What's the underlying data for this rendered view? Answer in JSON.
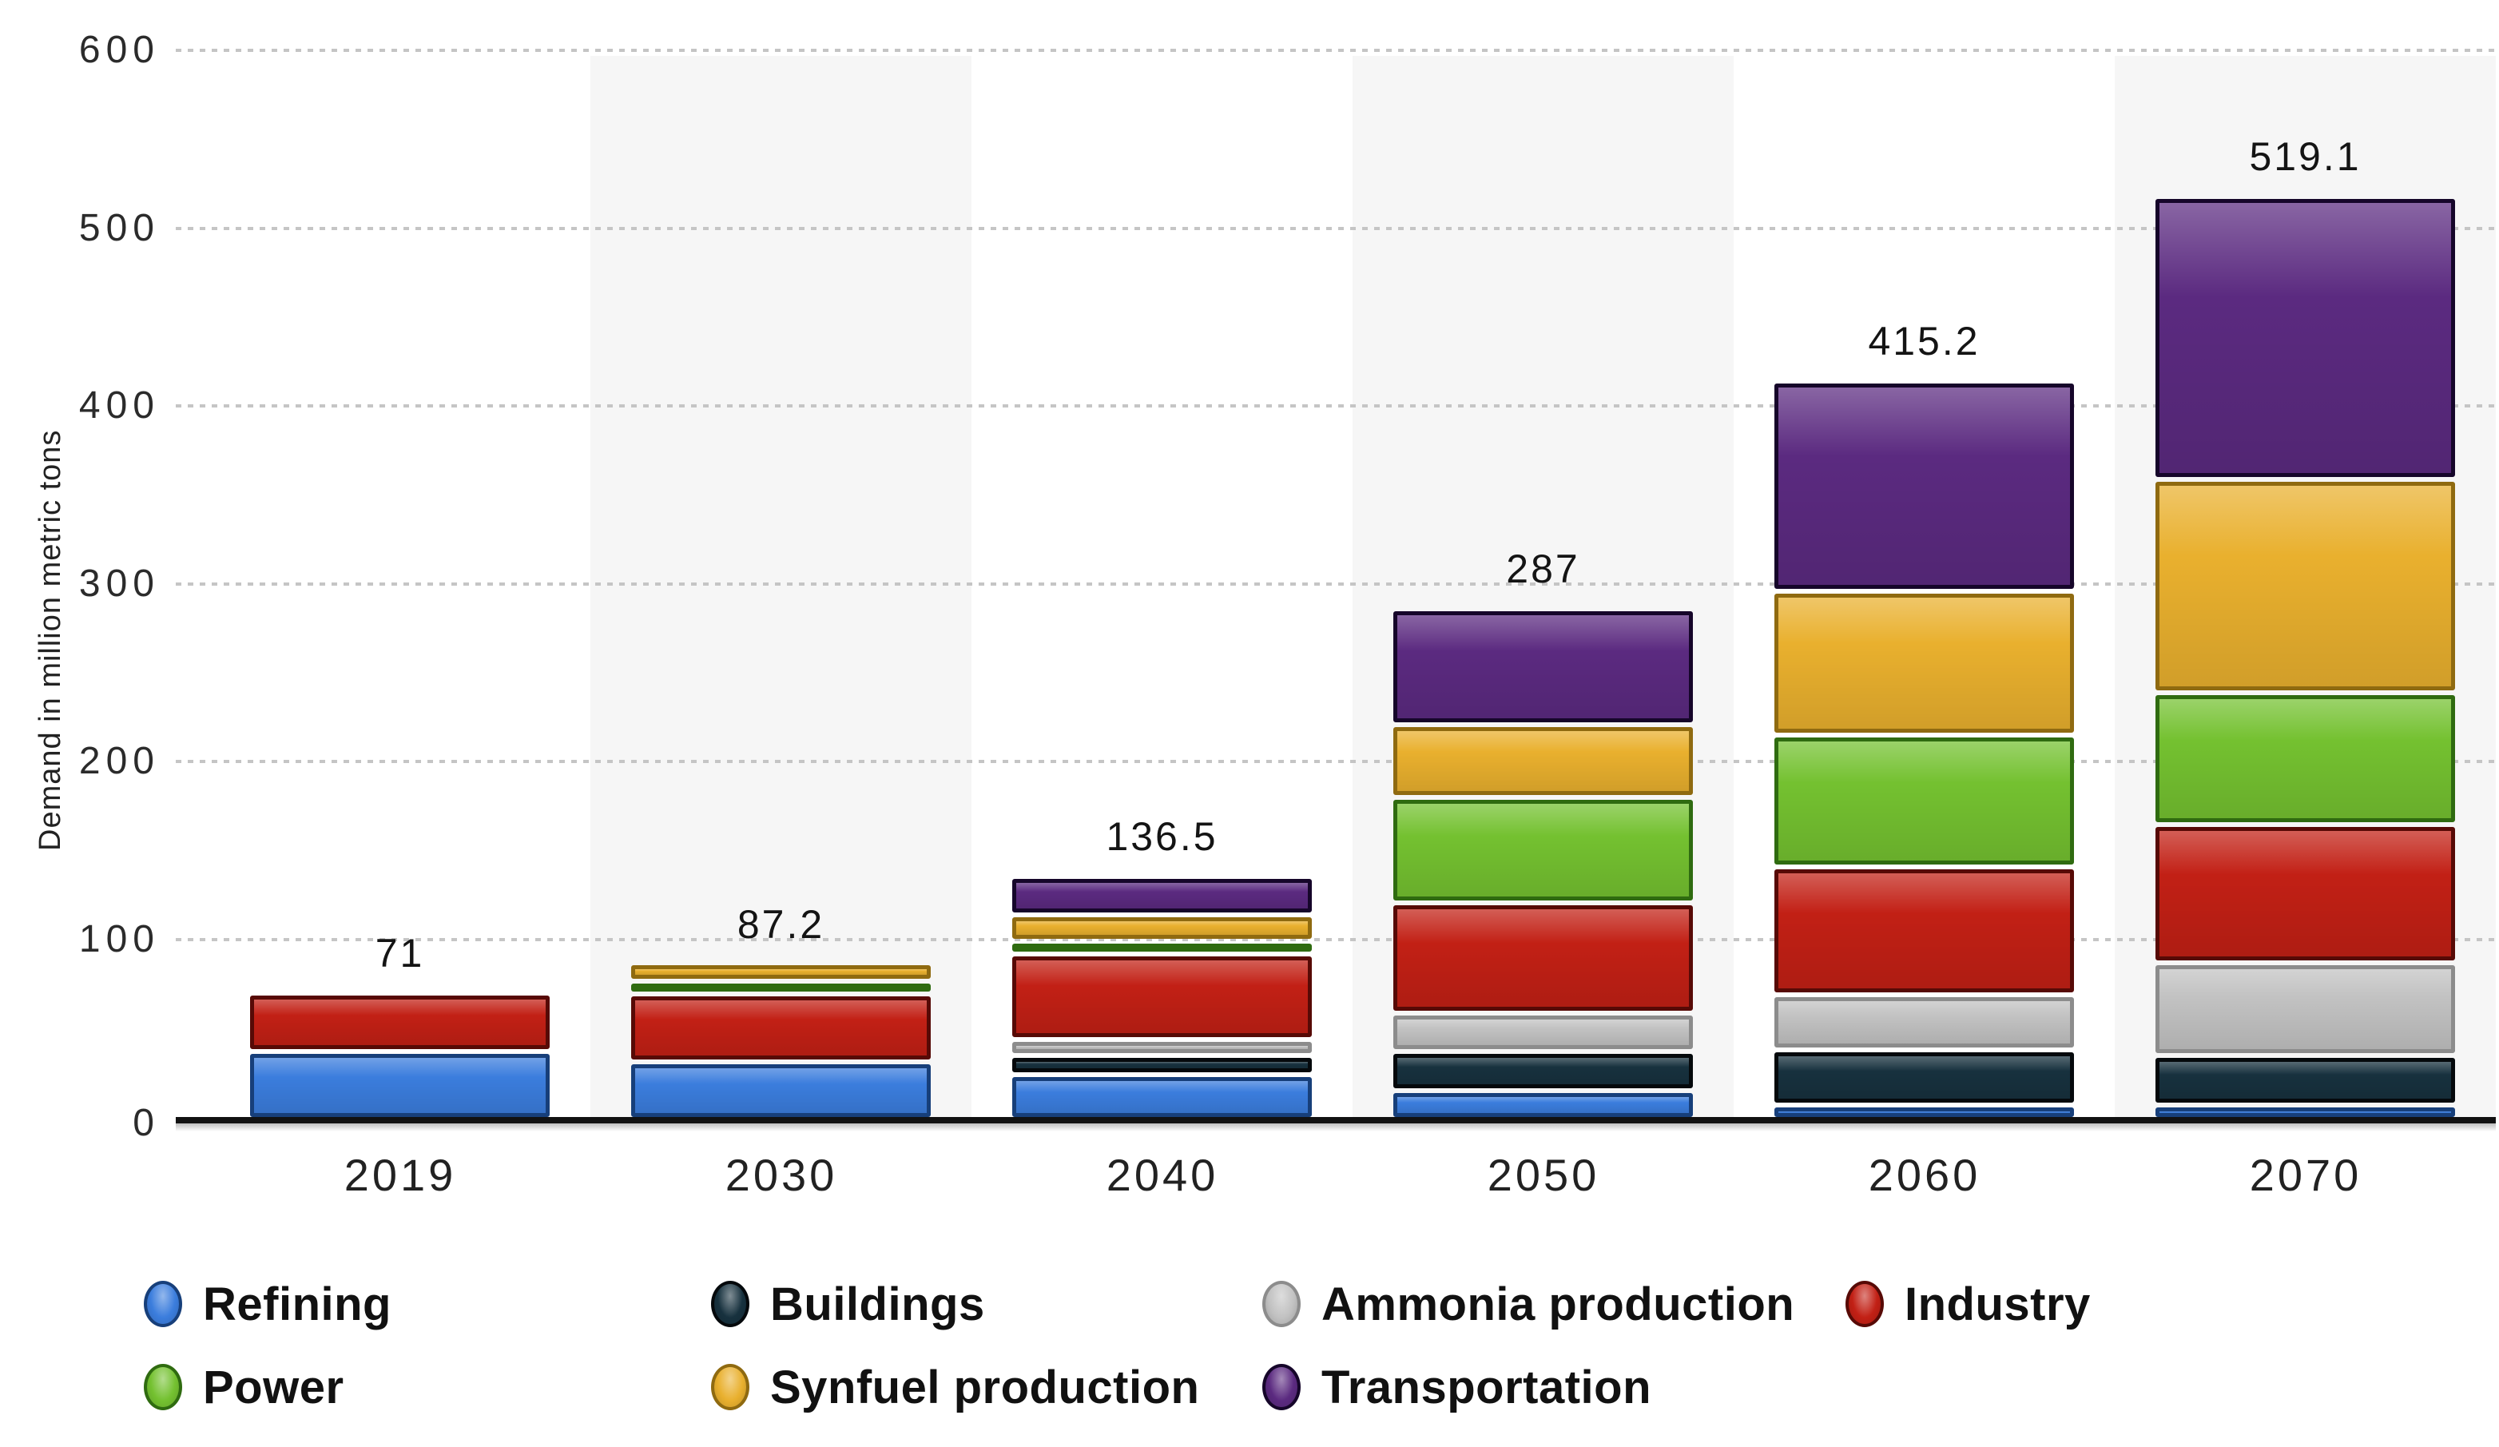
{
  "chart_data": {
    "type": "bar",
    "stacked": true,
    "title": "",
    "xlabel": "",
    "ylabel": "Demand in million metric tons",
    "ylim": [
      0,
      600
    ],
    "y_ticks": [
      600,
      500,
      400,
      300,
      200,
      100,
      0
    ],
    "grid": "dashed horizontal gridlines every 100",
    "legend_position": "bottom",
    "categories": [
      "2019",
      "2030",
      "2040",
      "2050",
      "2060",
      "2070"
    ],
    "totals_labels": [
      "71",
      "87.2",
      "136.5",
      "287",
      "415.2",
      "519.1"
    ],
    "series": [
      {
        "name": "Refining",
        "color": "#3b7ddd",
        "border": "#173f7a",
        "values": [
          38.4,
          32.5,
          25,
          16,
          8,
          8
        ]
      },
      {
        "name": "Buildings",
        "color": "#17313e",
        "border": "#05090c",
        "values": [
          0,
          0,
          11,
          22,
          31,
          28
        ]
      },
      {
        "name": "Ammonia production",
        "color": "#c2c2c2",
        "border": "#8c8c8c",
        "values": [
          0,
          0,
          9,
          22,
          31,
          52
        ]
      },
      {
        "name": "Industry",
        "color": "#c22015",
        "border": "#570a06",
        "values": [
          32.6,
          38.2,
          48,
          62,
          72,
          78
        ]
      },
      {
        "name": "Power",
        "color": "#74c130",
        "border": "#2f6b10",
        "values": [
          0,
          6.5,
          7,
          59,
          74,
          74
        ]
      },
      {
        "name": "Synfuel production",
        "color": "#e9b02e",
        "border": "#8f6a10",
        "values": [
          0,
          10,
          15,
          41,
          81,
          120
        ]
      },
      {
        "name": "Transportation",
        "color": "#5b2a80",
        "border": "#16062a",
        "values": [
          0,
          0,
          21.5,
          65,
          118.2,
          159.1
        ]
      }
    ]
  },
  "legend": {
    "rows": [
      [
        "Refining",
        "Buildings",
        "Ammonia production",
        "Industry"
      ],
      [
        "Power",
        "Synfuel production",
        "Transportation"
      ]
    ]
  },
  "colors": {
    "background": "#ffffff",
    "column_stripe": "#f6f6f6",
    "gridline": "#c5c5c5",
    "axis": "#111111",
    "text": "#222222"
  }
}
